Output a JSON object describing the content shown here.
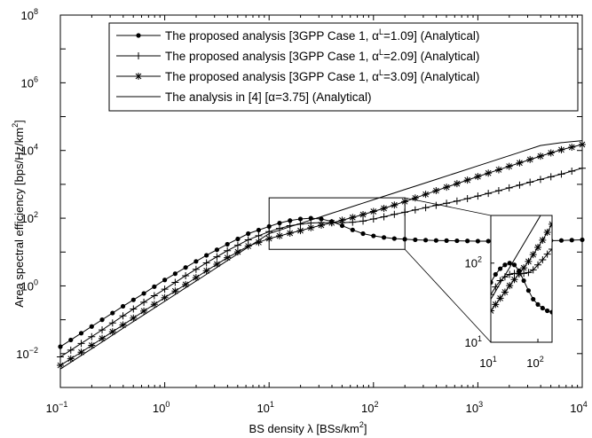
{
  "chart_data": {
    "type": "line",
    "x_scale": "log",
    "y_scale": "log",
    "xlim": [
      0.1,
      10000
    ],
    "ylim": [
      0.001,
      100000000
    ],
    "xlabel_pre": "BS density λ  [BSs/km",
    "xlabel_sup": "2",
    "xlabel_post": "]",
    "ylabel_pre": "Area spectral efficiency [bps/Hz/km",
    "ylabel_sup": "2",
    "ylabel_post": "]",
    "x_ticks": [
      {
        "value": 0.1,
        "base": "10",
        "exp": "−1"
      },
      {
        "value": 1,
        "base": "10",
        "exp": "0"
      },
      {
        "value": 10,
        "base": "10",
        "exp": "1"
      },
      {
        "value": 100,
        "base": "10",
        "exp": "2"
      },
      {
        "value": 1000,
        "base": "10",
        "exp": "3"
      },
      {
        "value": 10000,
        "base": "10",
        "exp": "4"
      }
    ],
    "y_ticks": [
      {
        "value": 0.01,
        "base": "10",
        "exp": "−2"
      },
      {
        "value": 1,
        "base": "10",
        "exp": "0"
      },
      {
        "value": 100,
        "base": "10",
        "exp": "2"
      },
      {
        "value": 10000,
        "base": "10",
        "exp": "4"
      },
      {
        "value": 1000000,
        "base": "10",
        "exp": "6"
      },
      {
        "value": 100000000,
        "base": "10",
        "exp": "8"
      }
    ],
    "x": [
      0.1,
      0.1585,
      0.2512,
      0.3981,
      0.631,
      1,
      1.585,
      2.512,
      3.981,
      6.31,
      10,
      12.59,
      15.85,
      19.95,
      25.12,
      31.62,
      39.81,
      50.12,
      63.1,
      79.43,
      100,
      125.9,
      158.5,
      199.5,
      251.2,
      398.1,
      631,
      1000,
      1585,
      2512,
      3981,
      6310,
      10000
    ],
    "series": [
      {
        "legend_pre": "The proposed analysis [3GPP Case 1, α",
        "legend_sup": "L",
        "legend_post": "=1.09] (Analytical)",
        "marker": "dot",
        "values": [
          0.016,
          0.04,
          0.1,
          0.25,
          0.6,
          1.5,
          3.5,
          8,
          17,
          35,
          57,
          72,
          85,
          95,
          100,
          95,
          80,
          60,
          45,
          35,
          30,
          27,
          25,
          24,
          23,
          22,
          21.5,
          21,
          21,
          21,
          21.5,
          22,
          23
        ]
      },
      {
        "legend_pre": "The proposed analysis [3GPP Case 1, α",
        "legend_sup": "L",
        "legend_post": "=2.09] (Analytical)",
        "marker": "plus",
        "values": [
          0.008,
          0.02,
          0.05,
          0.13,
          0.33,
          0.8,
          2,
          4.8,
          11,
          23,
          40,
          50,
          60,
          67,
          72,
          74,
          74,
          74,
          76,
          82,
          95,
          110,
          130,
          150,
          175,
          240,
          320,
          450,
          650,
          950,
          1400,
          2000,
          3000
        ]
      },
      {
        "legend_pre": "The proposed analysis [3GPP Case 1, α",
        "legend_sup": "L",
        "legend_post": "=3.09] (Analytical)",
        "marker": "star",
        "values": [
          0.0045,
          0.011,
          0.028,
          0.07,
          0.18,
          0.45,
          1.1,
          2.8,
          6.8,
          15,
          25,
          30,
          36,
          43,
          52,
          62,
          73,
          87,
          105,
          128,
          158,
          195,
          245,
          310,
          395,
          650,
          1050,
          1700,
          2700,
          4300,
          6800,
          10500,
          15000
        ]
      },
      {
        "legend_pre": "The analysis in [4] [α=3.75] (Analytical)",
        "legend_sup": "",
        "legend_post": "",
        "marker": "none",
        "values": [
          0.0035,
          0.0088,
          0.022,
          0.056,
          0.14,
          0.35,
          0.88,
          2.2,
          5.6,
          14,
          35,
          44,
          56,
          70,
          88,
          111,
          140,
          176,
          222,
          279,
          351,
          443,
          557,
          702,
          883,
          1398,
          2216,
          3513,
          5567,
          8822,
          13980,
          17000,
          19500
        ]
      }
    ],
    "inset": {
      "xlim": [
        10,
        200
      ],
      "ylim": [
        10,
        400
      ],
      "x_ticks": [
        {
          "value": 10,
          "base": "10",
          "exp": "1"
        },
        {
          "value": 100,
          "base": "10",
          "exp": "2"
        }
      ],
      "y_ticks": [
        {
          "value": 10,
          "base": "10",
          "exp": "1"
        },
        {
          "value": 100,
          "base": "10",
          "exp": "2"
        }
      ]
    },
    "zoom_box": {
      "xlim": [
        10,
        200
      ],
      "ylim": [
        12,
        400
      ]
    },
    "legend_position": "top-right",
    "grid": false
  }
}
